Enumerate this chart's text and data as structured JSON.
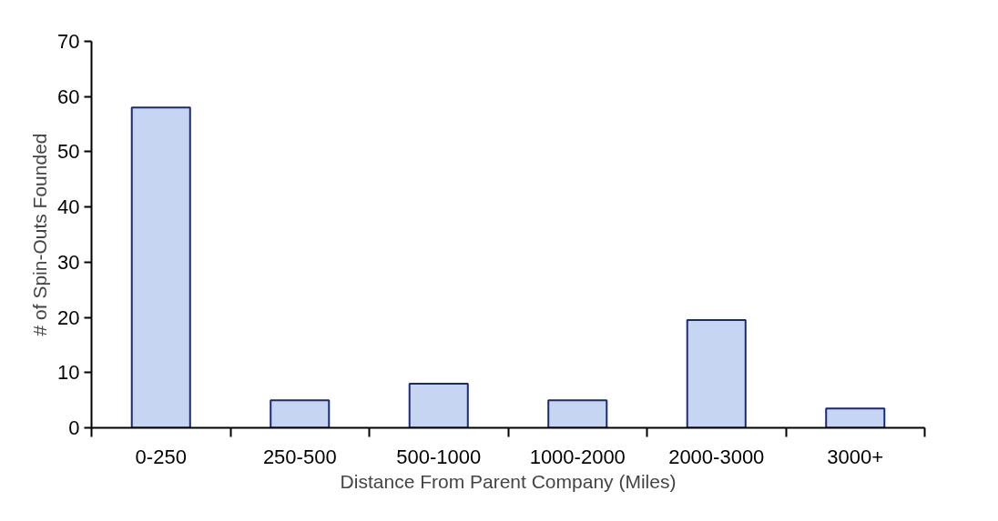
{
  "chart_data": {
    "type": "bar",
    "xlabel": "Distance From Parent Company (Miles)",
    "ylabel": "# of Spin-Outs Founded",
    "categories": [
      "0-250",
      "250-500",
      "500-1000",
      "1000-2000",
      "2000-3000",
      "3000+"
    ],
    "values": [
      58,
      5,
      8,
      5,
      19.5,
      3.5
    ],
    "color": "#c6d6f2",
    "ylim": [
      0,
      70
    ],
    "yticks": [
      0,
      10,
      20,
      30,
      40,
      50,
      60,
      70
    ],
    "grid": false
  }
}
